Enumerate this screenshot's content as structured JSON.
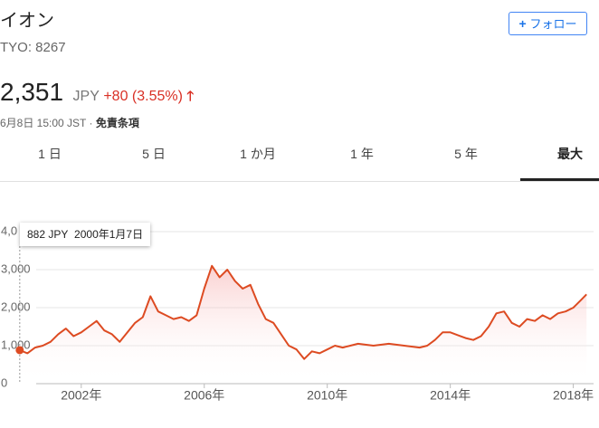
{
  "header": {
    "name": "イオン",
    "ticker": "TYO: 8267",
    "price": "2,351",
    "currency": "JPY",
    "change": "+80 (3.55%)",
    "timestamp": "6月8日 15:00 JST · ",
    "disclaimer": "免責条項",
    "follow": "フォロー"
  },
  "tabs": [
    "1 日",
    "5 日",
    "1 か月",
    "1 年",
    "5 年",
    "最大"
  ],
  "tooltip": {
    "price": "882 JPY",
    "date": "2000年1月7日"
  },
  "chart_data": {
    "type": "line",
    "color": "#dd4b22",
    "grid": true,
    "xlim": [
      1999.77,
      2018.6
    ],
    "ylim": [
      0,
      4000
    ],
    "xticks": [
      {
        "value": 2002,
        "label": "2002年"
      },
      {
        "value": 2006,
        "label": "2006年"
      },
      {
        "value": 2010,
        "label": "2010年"
      },
      {
        "value": 2014,
        "label": "2014年"
      },
      {
        "value": 2018,
        "label": "2018年"
      }
    ],
    "yticks": [
      0,
      {
        "value": 1000,
        "label": "1,000"
      },
      {
        "value": 2000,
        "label": "2,000"
      },
      {
        "value": 3000,
        "label": "3,000"
      },
      {
        "value": 4000,
        "label": "4,0"
      }
    ],
    "series": [
      {
        "name": "イオン",
        "color": "#dd4b22",
        "x": [
          2000.0,
          2000.25,
          2000.5,
          2000.75,
          2001.0,
          2001.25,
          2001.5,
          2001.75,
          2002.0,
          2002.25,
          2002.5,
          2002.75,
          2003.0,
          2003.25,
          2003.5,
          2003.75,
          2004.0,
          2004.25,
          2004.5,
          2004.75,
          2005.0,
          2005.25,
          2005.5,
          2005.75,
          2006.0,
          2006.25,
          2006.5,
          2006.75,
          2007.0,
          2007.25,
          2007.5,
          2007.75,
          2008.0,
          2008.25,
          2008.5,
          2008.75,
          2009.0,
          2009.25,
          2009.5,
          2009.75,
          2010.0,
          2010.25,
          2010.5,
          2010.75,
          2011.0,
          2011.5,
          2012.0,
          2012.5,
          2013.0,
          2013.25,
          2013.5,
          2013.75,
          2014.0,
          2014.5,
          2014.75,
          2015.0,
          2015.25,
          2015.5,
          2015.75,
          2016.0,
          2016.25,
          2016.5,
          2016.75,
          2017.0,
          2017.25,
          2017.5,
          2017.75,
          2018.0,
          2018.25,
          2018.43
        ],
        "values": [
          882,
          800,
          950,
          1000,
          1100,
          1300,
          1450,
          1250,
          1350,
          1500,
          1650,
          1400,
          1300,
          1100,
          1350,
          1600,
          1750,
          2300,
          1900,
          1800,
          1700,
          1750,
          1650,
          1800,
          2500,
          3100,
          2800,
          3000,
          2700,
          2500,
          2600,
          2100,
          1700,
          1600,
          1300,
          1000,
          900,
          650,
          850,
          800,
          900,
          1000,
          950,
          1000,
          1050,
          1000,
          1050,
          1000,
          950,
          1000,
          1150,
          1350,
          1350,
          1200,
          1150,
          1250,
          1500,
          1850,
          1900,
          1600,
          1500,
          1700,
          1650,
          1800,
          1700,
          1850,
          1900,
          2000,
          2200,
          2351
        ]
      }
    ]
  }
}
